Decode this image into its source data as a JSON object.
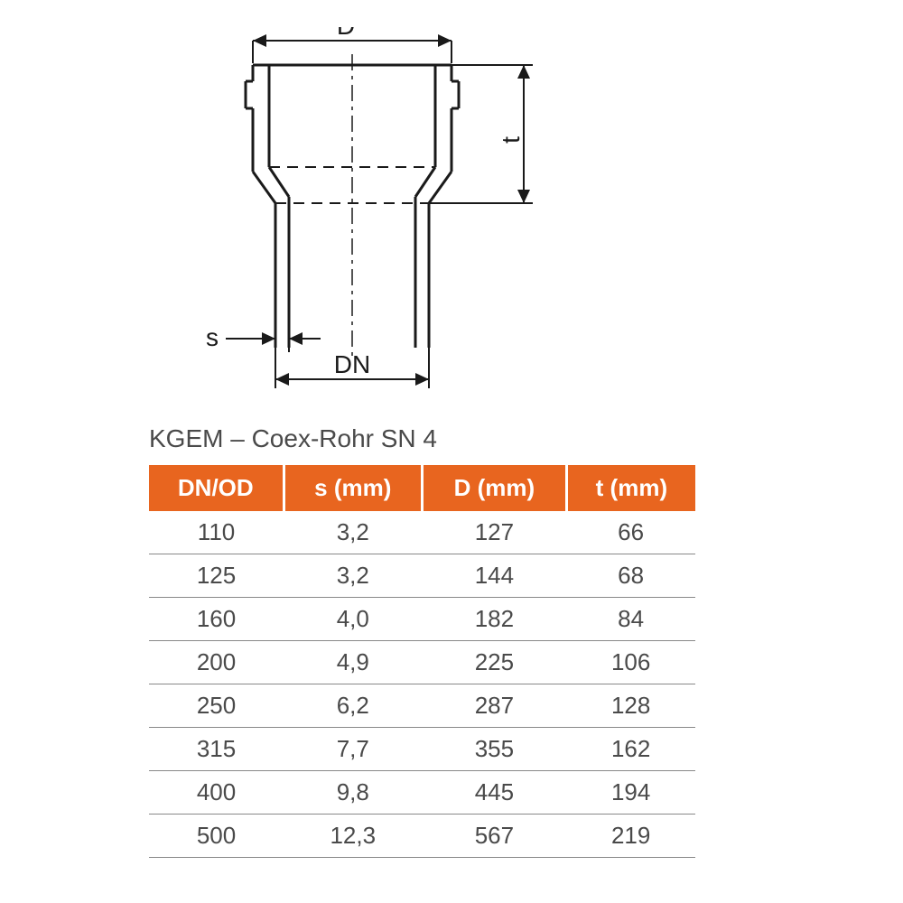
{
  "diagram": {
    "labels": {
      "D": "D",
      "t": "t",
      "s": "s",
      "DN": "DN"
    },
    "stroke_color": "#1a1a1a",
    "stroke_width": 3,
    "stroke_width_thin": 2
  },
  "title": "KGEM – Coex-Rohr SN 4",
  "table": {
    "header_bg": "#e8651f",
    "header_fg": "#ffffff",
    "text_color": "#4a4a4a",
    "border_color": "#888888",
    "columns": [
      "DN/OD",
      "s (mm)",
      "D (mm)",
      "t (mm)"
    ],
    "rows": [
      [
        "110",
        "3,2",
        "127",
        "66"
      ],
      [
        "125",
        "3,2",
        "144",
        "68"
      ],
      [
        "160",
        "4,0",
        "182",
        "84"
      ],
      [
        "200",
        "4,9",
        "225",
        "106"
      ],
      [
        "250",
        "6,2",
        "287",
        "128"
      ],
      [
        "315",
        "7,7",
        "355",
        "162"
      ],
      [
        "400",
        "9,8",
        "445",
        "194"
      ],
      [
        "500",
        "12,3",
        "567",
        "219"
      ]
    ]
  }
}
